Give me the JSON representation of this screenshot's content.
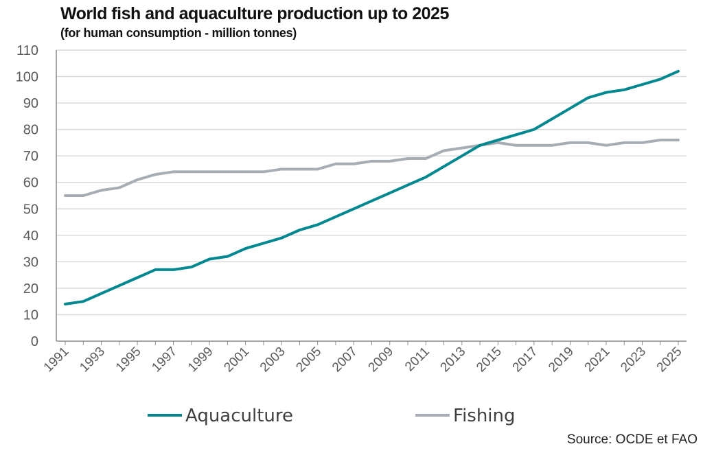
{
  "chart_data": {
    "type": "line",
    "title": "World fish and aquaculture production up to 2025",
    "subtitle": "(for human consumption - million tonnes)",
    "xlabel": "",
    "ylabel": "",
    "ylim": [
      0,
      110
    ],
    "yticks": [
      0,
      10,
      20,
      30,
      40,
      50,
      60,
      70,
      80,
      90,
      100,
      110
    ],
    "x": [
      1991,
      1992,
      1993,
      1994,
      1995,
      1996,
      1997,
      1998,
      1999,
      2000,
      2001,
      2002,
      2003,
      2004,
      2005,
      2006,
      2007,
      2008,
      2009,
      2010,
      2011,
      2012,
      2013,
      2014,
      2015,
      2016,
      2017,
      2018,
      2019,
      2020,
      2021,
      2022,
      2023,
      2024,
      2025
    ],
    "xtick_labels": [
      "1991",
      "1993",
      "1995",
      "1997",
      "1999",
      "2001",
      "2003",
      "2005",
      "2007",
      "2009",
      "2011",
      "2013",
      "2015",
      "2017",
      "2019",
      "2021",
      "2023",
      "2025"
    ],
    "grid": true,
    "legend_position": "bottom",
    "series": [
      {
        "name": "Aquaculture",
        "color": "#00878f",
        "values": [
          14,
          15,
          18,
          21,
          24,
          27,
          27,
          28,
          31,
          32,
          35,
          37,
          39,
          42,
          44,
          47,
          50,
          53,
          56,
          59,
          62,
          66,
          70,
          74,
          76,
          78,
          80,
          84,
          88,
          92,
          94,
          95,
          97,
          99,
          102
        ]
      },
      {
        "name": "Fishing",
        "color": "#a7adb5",
        "values": [
          55,
          55,
          57,
          58,
          61,
          63,
          64,
          64,
          64,
          64,
          64,
          64,
          65,
          65,
          65,
          67,
          67,
          68,
          68,
          69,
          69,
          72,
          73,
          74,
          75,
          74,
          74,
          74,
          75,
          75,
          74,
          75,
          75,
          76,
          76
        ]
      }
    ],
    "source": "Source: OCDE et FAO"
  }
}
